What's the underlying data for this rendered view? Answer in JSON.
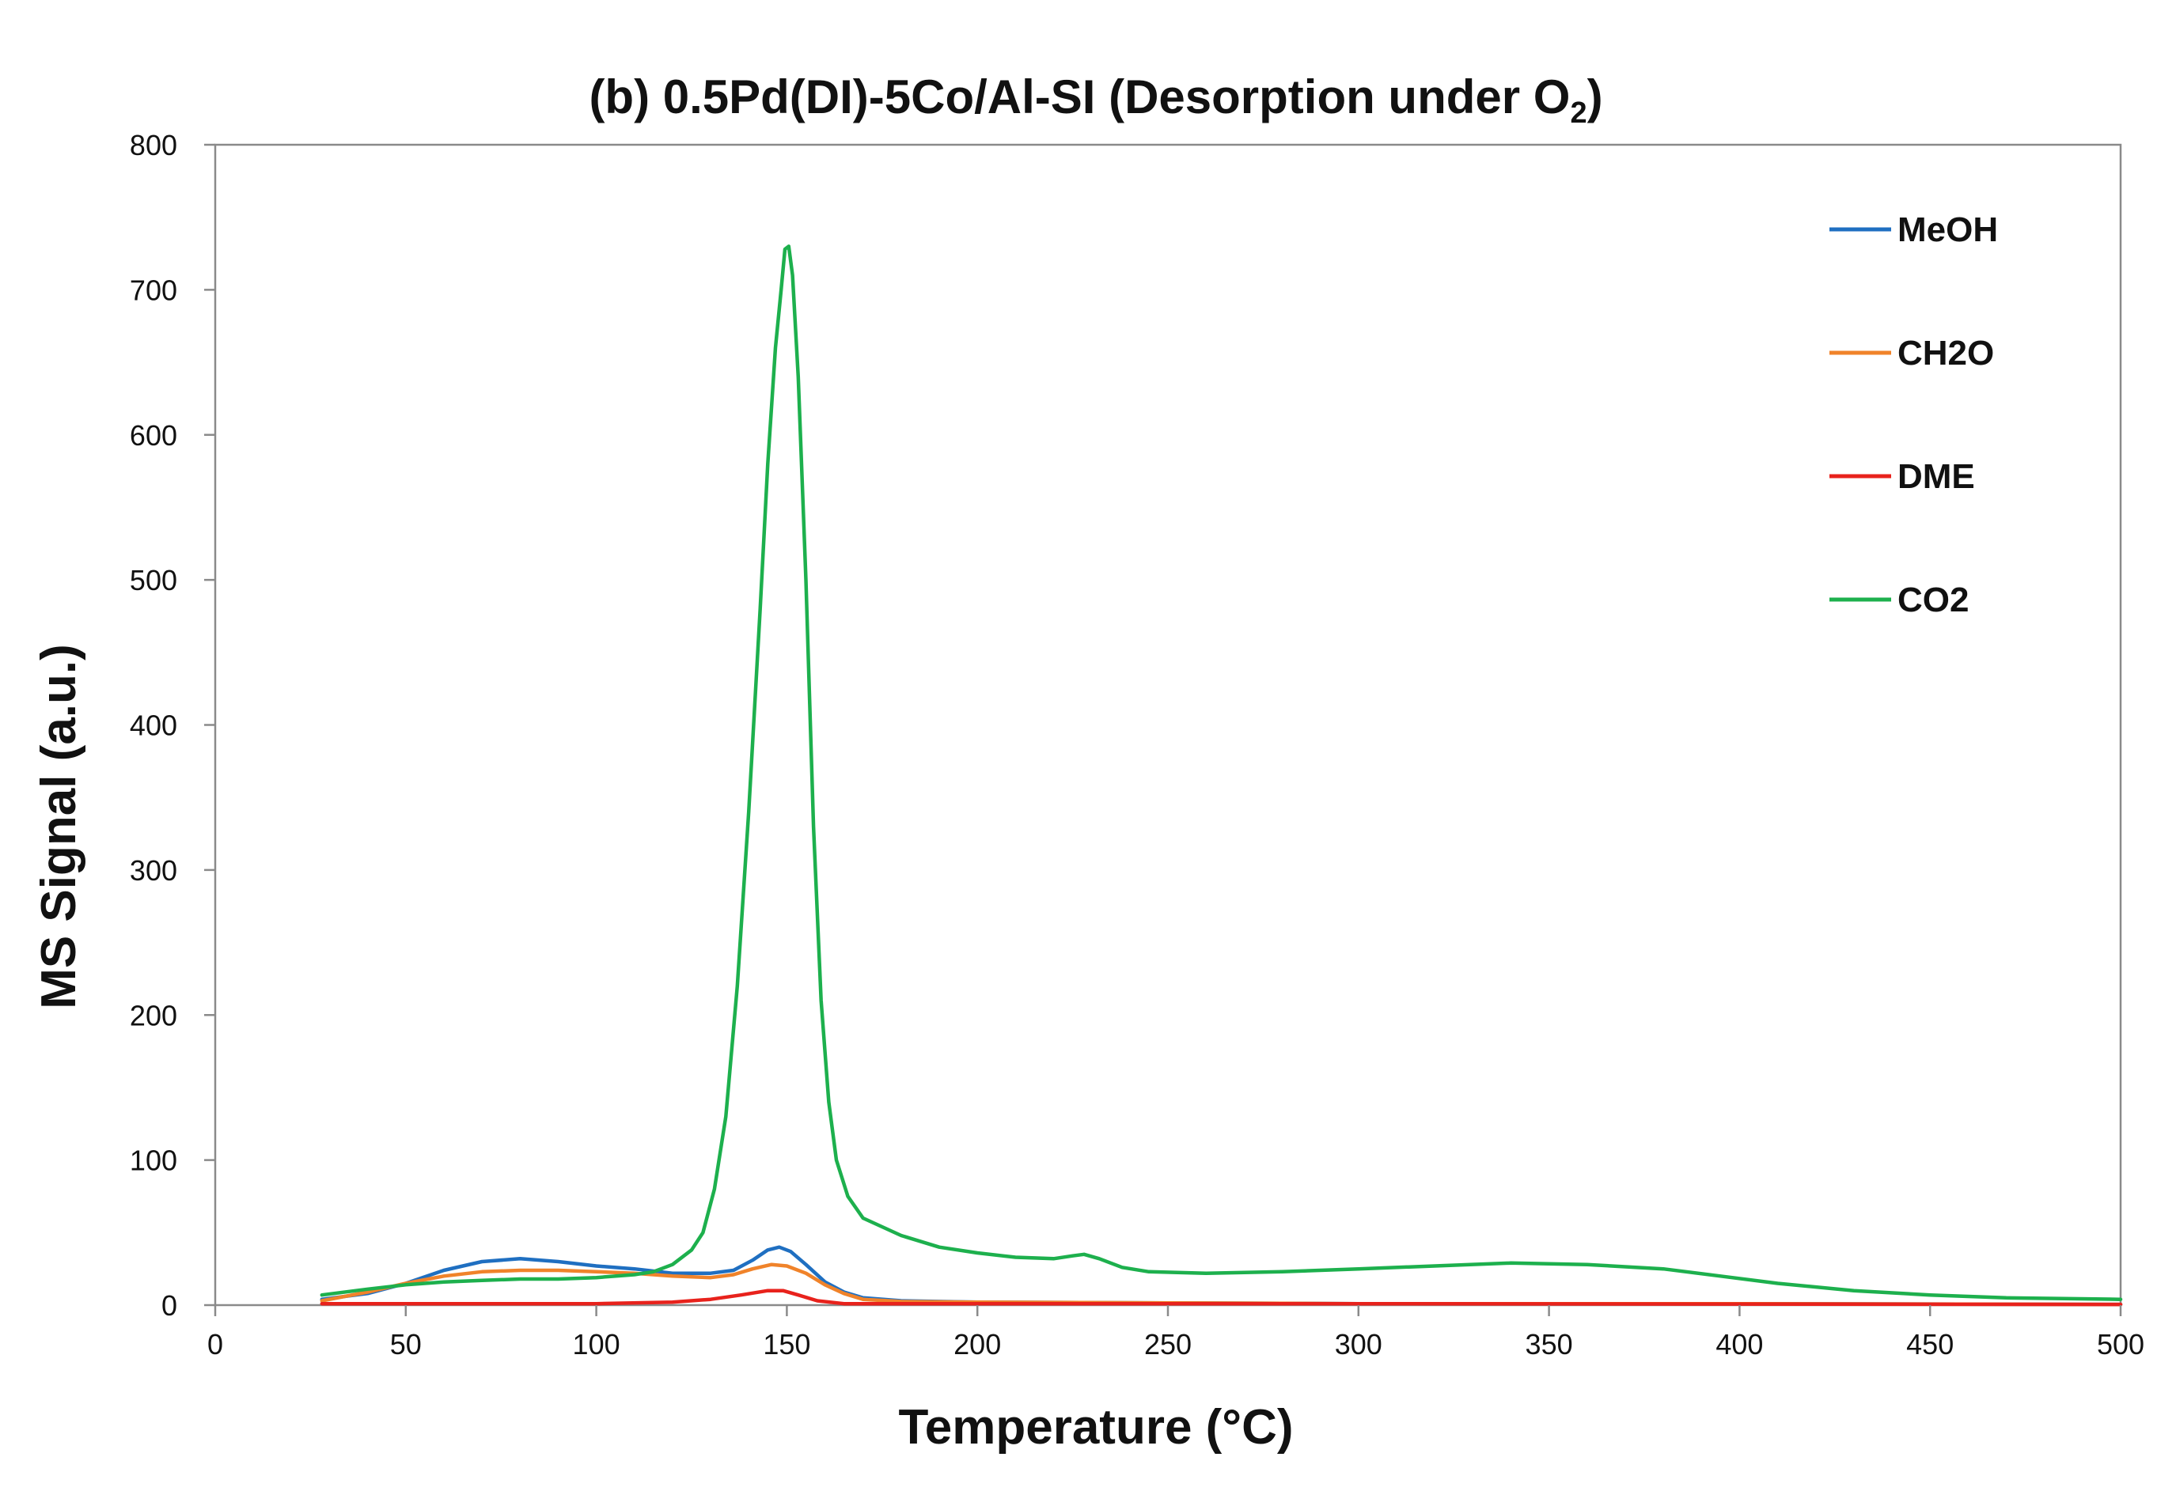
{
  "chart_data": {
    "type": "line",
    "title_main": "(b)    0.5Pd(DI)-5Co/Al-SI (Desorption under O",
    "title_sub": "2",
    "title_tail": ")",
    "xlabel": "Temperature (°C)",
    "ylabel": "MS Signal (a.u.)",
    "xlim": [
      0,
      500
    ],
    "ylim": [
      0,
      800
    ],
    "xticks": [
      0,
      50,
      100,
      150,
      200,
      250,
      300,
      350,
      400,
      450,
      500
    ],
    "yticks": [
      0,
      100,
      200,
      300,
      400,
      500,
      600,
      700,
      800
    ],
    "grid": false,
    "legend_position": "top-right",
    "series": [
      {
        "name": "MeOH",
        "color": "#1f6fc1",
        "points": [
          [
            28,
            4
          ],
          [
            40,
            8
          ],
          [
            50,
            15
          ],
          [
            60,
            24
          ],
          [
            70,
            30
          ],
          [
            80,
            32
          ],
          [
            90,
            30
          ],
          [
            100,
            27
          ],
          [
            110,
            25
          ],
          [
            120,
            22
          ],
          [
            130,
            22
          ],
          [
            136,
            24
          ],
          [
            141,
            31
          ],
          [
            145,
            38
          ],
          [
            148,
            40
          ],
          [
            151,
            37
          ],
          [
            155,
            28
          ],
          [
            160,
            16
          ],
          [
            165,
            9
          ],
          [
            170,
            5
          ],
          [
            180,
            3
          ],
          [
            200,
            2
          ],
          [
            250,
            1.5
          ],
          [
            300,
            1
          ],
          [
            400,
            1
          ],
          [
            500,
            0.5
          ]
        ]
      },
      {
        "name": "CH2O",
        "color": "#f0832a",
        "points": [
          [
            28,
            3
          ],
          [
            40,
            9
          ],
          [
            50,
            15
          ],
          [
            60,
            20
          ],
          [
            70,
            23
          ],
          [
            80,
            24
          ],
          [
            90,
            24
          ],
          [
            100,
            23
          ],
          [
            110,
            22
          ],
          [
            120,
            20
          ],
          [
            130,
            19
          ],
          [
            136,
            21
          ],
          [
            141,
            25
          ],
          [
            146,
            28
          ],
          [
            150,
            27
          ],
          [
            155,
            22
          ],
          [
            160,
            14
          ],
          [
            165,
            8
          ],
          [
            170,
            4
          ],
          [
            180,
            2.5
          ],
          [
            200,
            2
          ],
          [
            250,
            1.5
          ],
          [
            300,
            1
          ],
          [
            400,
            1
          ],
          [
            500,
            0.5
          ]
        ]
      },
      {
        "name": "DME",
        "color": "#e8221c",
        "points": [
          [
            28,
            1
          ],
          [
            50,
            1
          ],
          [
            100,
            1
          ],
          [
            120,
            2
          ],
          [
            130,
            4
          ],
          [
            138,
            7
          ],
          [
            145,
            10
          ],
          [
            149,
            10
          ],
          [
            153,
            7
          ],
          [
            158,
            3
          ],
          [
            165,
            1
          ],
          [
            200,
            1
          ],
          [
            300,
            1
          ],
          [
            500,
            0.5
          ]
        ]
      },
      {
        "name": "CO2",
        "color": "#1db04d",
        "points": [
          [
            28,
            7
          ],
          [
            40,
            11
          ],
          [
            50,
            14
          ],
          [
            60,
            16
          ],
          [
            70,
            17
          ],
          [
            80,
            18
          ],
          [
            90,
            18
          ],
          [
            100,
            19
          ],
          [
            110,
            21
          ],
          [
            115,
            23
          ],
          [
            120,
            28
          ],
          [
            125,
            38
          ],
          [
            128,
            50
          ],
          [
            131,
            80
          ],
          [
            134,
            130
          ],
          [
            137,
            220
          ],
          [
            140,
            340
          ],
          [
            143,
            480
          ],
          [
            145,
            580
          ],
          [
            147,
            660
          ],
          [
            148.5,
            700
          ],
          [
            149.5,
            728
          ],
          [
            150.5,
            730
          ],
          [
            151.5,
            710
          ],
          [
            153,
            640
          ],
          [
            155,
            500
          ],
          [
            157,
            330
          ],
          [
            159,
            210
          ],
          [
            161,
            140
          ],
          [
            163,
            100
          ],
          [
            166,
            75
          ],
          [
            170,
            60
          ],
          [
            180,
            48
          ],
          [
            190,
            40
          ],
          [
            200,
            36
          ],
          [
            210,
            33
          ],
          [
            220,
            32
          ],
          [
            225,
            34
          ],
          [
            228,
            35
          ],
          [
            232,
            32
          ],
          [
            238,
            26
          ],
          [
            245,
            23
          ],
          [
            260,
            22
          ],
          [
            280,
            23
          ],
          [
            300,
            25
          ],
          [
            320,
            27
          ],
          [
            340,
            29
          ],
          [
            360,
            28
          ],
          [
            380,
            25
          ],
          [
            395,
            20
          ],
          [
            410,
            15
          ],
          [
            430,
            10
          ],
          [
            450,
            7
          ],
          [
            470,
            5
          ],
          [
            500,
            4
          ]
        ]
      }
    ]
  }
}
